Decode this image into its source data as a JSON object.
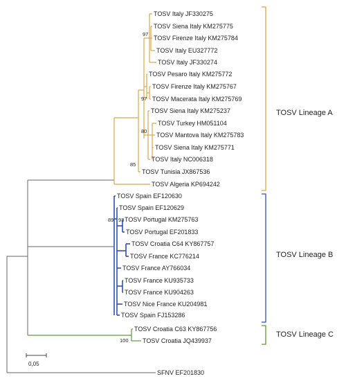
{
  "colors": {
    "lineage_a": "#d8a64a",
    "lineage_b": "#2f4fb3",
    "lineage_c": "#5e9a3a",
    "outgroup": "#666666"
  },
  "leaves": [
    "TOSV Italy JF330275",
    "TOSV Siena Italy KM275775",
    "TOSV Firenze Italy KM275784",
    "TOSV Italy EU327772",
    "TOSV Italy JF330274",
    "TOSV Pesaro Italy KM275772",
    "TOSV Firenze Italy KM275767",
    "TOSV Macerata Italy KM275769",
    "TOSV Siena Italy KM275237",
    "TOSV Turkey HM051104",
    "TOSV Mantova Italy KM275783",
    "TOSV Siena Italy KM275771",
    "TOSV Italy NC006318",
    "TOSV Tunisia JX867536",
    "TOSV Algeria KP694242",
    "TOSV Spain EF120630",
    "TOSV Spain EF120629",
    "TOSV Portugal KM275763",
    "TOSV Portugal EF201833",
    "TOSV Croatia C64 KY867757",
    "TOSV France KC776214",
    "TOSV France AY766034",
    "TOSV France KU935733",
    "TOSV France KU904263",
    "TOSV Nice France KU204981",
    "TOSV Spain FJ153286",
    "TOSV Croatia C63 KY867756",
    "TOSV Croatia JQ439937",
    "SFNV EF201830"
  ],
  "bootstrap": [
    "97",
    "97",
    "80",
    "85",
    "89",
    "93",
    "100"
  ],
  "lineages": [
    "TOSV Lineage A",
    "TOSV Lineage B",
    "TOSV Lineage C"
  ],
  "scale": {
    "label": "0,05"
  }
}
